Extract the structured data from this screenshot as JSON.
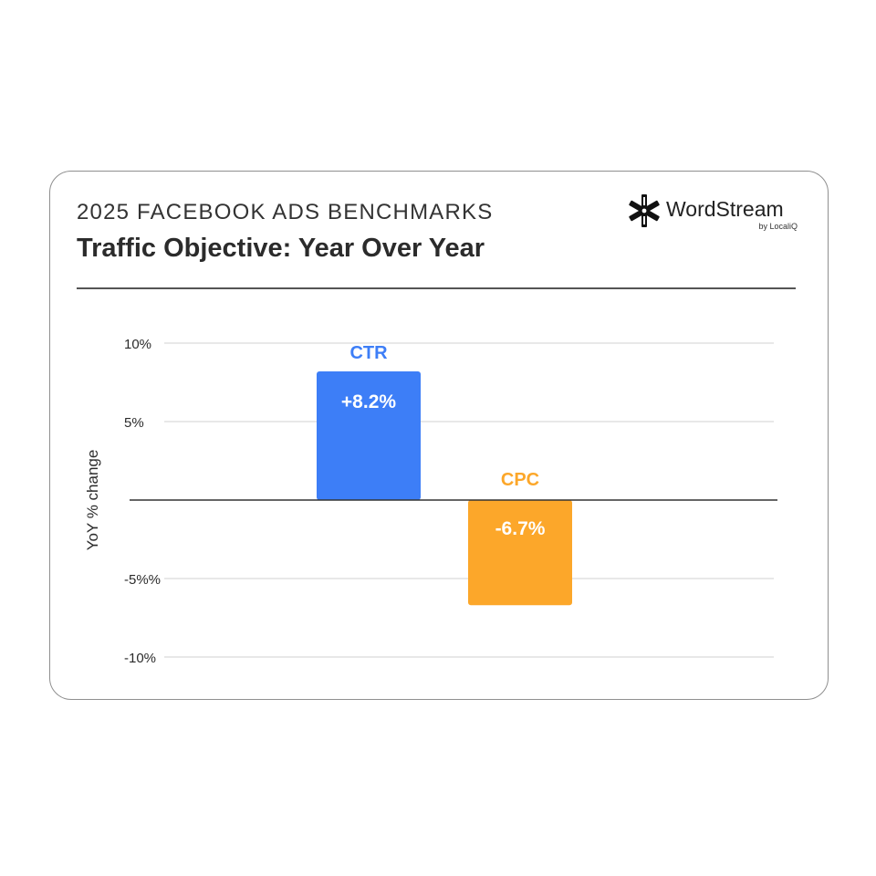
{
  "header": {
    "kicker": "2025 FACEBOOK ADS BENCHMARKS",
    "title": "Traffic Objective: Year Over Year"
  },
  "logo": {
    "wordmark": "WordStream",
    "byline": "by LocaliQ",
    "icon": "wordstream-asterisk-icon"
  },
  "colors": {
    "ctr": "#3d7ef7",
    "cpc": "#fca72a",
    "grid": "#d9d9d9",
    "axis": "#333333",
    "text": "#2b2b2b"
  },
  "chart_data": {
    "type": "bar",
    "categories": [
      "CTR",
      "CPC"
    ],
    "values": [
      8.2,
      -6.7
    ],
    "value_labels": [
      "+8.2%",
      "-6.7%"
    ],
    "ylabel": "YoY % change",
    "ylim": [
      -10,
      10
    ],
    "yticks": [
      10,
      5,
      -5,
      -10
    ],
    "ytick_labels": [
      "10%",
      "5%",
      "-5%%",
      "-10%"
    ],
    "grid": true,
    "legend": "none"
  }
}
